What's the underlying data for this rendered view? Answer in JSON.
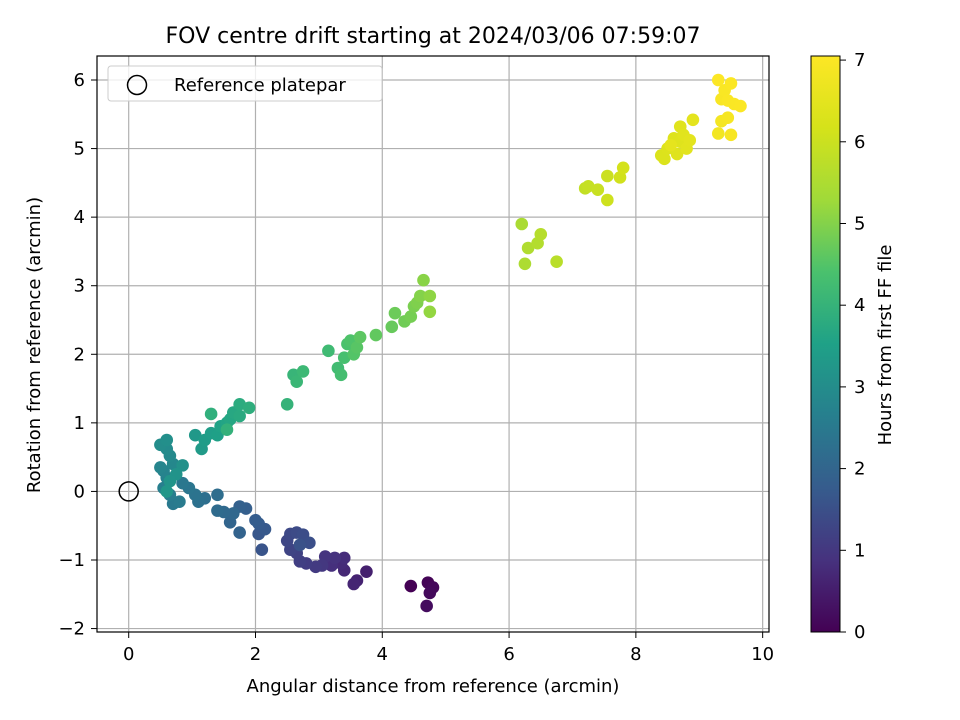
{
  "chart_data": {
    "type": "scatter",
    "title": "FOV centre drift starting at 2024/03/06 07:59:07",
    "xlabel": "Angular distance from reference (arcmin)",
    "ylabel": "Rotation from reference (arcmin)",
    "xlim": [
      -0.5,
      10.1
    ],
    "ylim": [
      -2.05,
      6.35
    ],
    "xticks": [
      0,
      2,
      4,
      6,
      8,
      10
    ],
    "yticks": [
      -2,
      -1,
      0,
      1,
      2,
      3,
      4,
      5,
      6
    ],
    "xtick_labels": [
      "0",
      "2",
      "4",
      "6",
      "8",
      "10"
    ],
    "ytick_labels": [
      "−2",
      "−1",
      "0",
      "1",
      "2",
      "3",
      "4",
      "5",
      "6"
    ],
    "grid": true,
    "legend": {
      "label": "Reference platepar",
      "placement": "top-left",
      "marker": "open-circle"
    },
    "reference_point": {
      "x": 0,
      "y": 0,
      "label": "Reference platepar"
    },
    "colorbar": {
      "label": "Hours from first FF file",
      "range": [
        0,
        7.05
      ],
      "ticks": [
        0,
        1,
        2,
        3,
        4,
        5,
        6,
        7
      ],
      "tick_labels": [
        "0",
        "1",
        "2",
        "3",
        "4",
        "5",
        "6",
        "7"
      ],
      "colormap": "viridis"
    },
    "points": [
      {
        "x": 4.45,
        "y": -1.38,
        "c": 0.0
      },
      {
        "x": 4.72,
        "y": -1.33,
        "c": 0.05
      },
      {
        "x": 4.8,
        "y": -1.4,
        "c": 0.1
      },
      {
        "x": 4.75,
        "y": -1.48,
        "c": 0.15
      },
      {
        "x": 4.7,
        "y": -1.67,
        "c": 0.2
      },
      {
        "x": 3.75,
        "y": -1.17,
        "c": 0.55
      },
      {
        "x": 3.6,
        "y": -1.3,
        "c": 0.6
      },
      {
        "x": 3.55,
        "y": -1.35,
        "c": 0.65
      },
      {
        "x": 3.4,
        "y": -1.15,
        "c": 0.7
      },
      {
        "x": 3.35,
        "y": -1.05,
        "c": 0.75
      },
      {
        "x": 3.4,
        "y": -0.97,
        "c": 0.8
      },
      {
        "x": 3.2,
        "y": -1.08,
        "c": 0.85
      },
      {
        "x": 3.25,
        "y": -0.97,
        "c": 0.9
      },
      {
        "x": 3.1,
        "y": -0.95,
        "c": 0.95
      },
      {
        "x": 3.05,
        "y": -1.08,
        "c": 1.0
      },
      {
        "x": 2.95,
        "y": -1.1,
        "c": 1.05
      },
      {
        "x": 2.8,
        "y": -1.05,
        "c": 1.1
      },
      {
        "x": 2.7,
        "y": -1.02,
        "c": 1.15
      },
      {
        "x": 2.65,
        "y": -0.9,
        "c": 1.2
      },
      {
        "x": 2.55,
        "y": -0.85,
        "c": 1.25
      },
      {
        "x": 2.5,
        "y": -0.72,
        "c": 1.3
      },
      {
        "x": 2.55,
        "y": -0.62,
        "c": 1.35
      },
      {
        "x": 2.65,
        "y": -0.6,
        "c": 1.4
      },
      {
        "x": 2.75,
        "y": -0.63,
        "c": 1.45
      },
      {
        "x": 2.85,
        "y": -0.75,
        "c": 1.5
      },
      {
        "x": 2.7,
        "y": -0.78,
        "c": 1.55
      },
      {
        "x": 2.1,
        "y": -0.85,
        "c": 1.6
      },
      {
        "x": 2.05,
        "y": -0.62,
        "c": 1.65
      },
      {
        "x": 2.15,
        "y": -0.55,
        "c": 1.7
      },
      {
        "x": 2.05,
        "y": -0.47,
        "c": 1.75
      },
      {
        "x": 2.0,
        "y": -0.42,
        "c": 1.8
      },
      {
        "x": 1.85,
        "y": -0.25,
        "c": 1.85
      },
      {
        "x": 1.75,
        "y": -0.22,
        "c": 1.9
      },
      {
        "x": 1.75,
        "y": -0.6,
        "c": 1.95
      },
      {
        "x": 1.6,
        "y": -0.45,
        "c": 2.0
      },
      {
        "x": 1.65,
        "y": -0.32,
        "c": 2.05
      },
      {
        "x": 1.5,
        "y": -0.3,
        "c": 2.1
      },
      {
        "x": 1.4,
        "y": -0.28,
        "c": 2.15
      },
      {
        "x": 1.4,
        "y": -0.05,
        "c": 2.2
      },
      {
        "x": 1.2,
        "y": -0.1,
        "c": 2.25
      },
      {
        "x": 1.1,
        "y": -0.15,
        "c": 2.3
      },
      {
        "x": 1.05,
        "y": -0.05,
        "c": 2.35
      },
      {
        "x": 0.95,
        "y": 0.05,
        "c": 2.4
      },
      {
        "x": 0.85,
        "y": 0.12,
        "c": 2.45
      },
      {
        "x": 0.7,
        "y": -0.18,
        "c": 2.5
      },
      {
        "x": 0.8,
        "y": -0.15,
        "c": 2.55
      },
      {
        "x": 0.65,
        "y": -0.05,
        "c": 2.6
      },
      {
        "x": 0.55,
        "y": 0.05,
        "c": 2.65
      },
      {
        "x": 0.6,
        "y": 0.2,
        "c": 2.7
      },
      {
        "x": 0.55,
        "y": 0.3,
        "c": 2.75
      },
      {
        "x": 0.5,
        "y": 0.35,
        "c": 2.8
      },
      {
        "x": 0.7,
        "y": 0.4,
        "c": 2.85
      },
      {
        "x": 0.65,
        "y": 0.52,
        "c": 2.9
      },
      {
        "x": 0.6,
        "y": 0.62,
        "c": 2.95
      },
      {
        "x": 0.5,
        "y": 0.68,
        "c": 3.0
      },
      {
        "x": 0.6,
        "y": 0.75,
        "c": 3.05
      },
      {
        "x": 0.85,
        "y": 0.38,
        "c": 3.1
      },
      {
        "x": 0.75,
        "y": 0.25,
        "c": 3.15
      },
      {
        "x": 0.65,
        "y": 0.15,
        "c": 3.2
      },
      {
        "x": 0.6,
        "y": 0.0,
        "c": 3.25
      },
      {
        "x": 1.05,
        "y": 0.82,
        "c": 3.3
      },
      {
        "x": 1.15,
        "y": 0.62,
        "c": 3.35
      },
      {
        "x": 1.2,
        "y": 0.75,
        "c": 3.4
      },
      {
        "x": 1.3,
        "y": 0.85,
        "c": 3.45
      },
      {
        "x": 1.4,
        "y": 0.82,
        "c": 3.5
      },
      {
        "x": 1.45,
        "y": 0.95,
        "c": 3.55
      },
      {
        "x": 1.55,
        "y": 1.0,
        "c": 3.6
      },
      {
        "x": 1.6,
        "y": 1.05,
        "c": 3.65
      },
      {
        "x": 1.65,
        "y": 1.15,
        "c": 3.7
      },
      {
        "x": 1.75,
        "y": 1.1,
        "c": 3.75
      },
      {
        "x": 1.75,
        "y": 1.27,
        "c": 3.8
      },
      {
        "x": 1.9,
        "y": 1.22,
        "c": 3.85
      },
      {
        "x": 1.3,
        "y": 1.13,
        "c": 3.9
      },
      {
        "x": 1.55,
        "y": 0.9,
        "c": 3.95
      },
      {
        "x": 2.5,
        "y": 1.27,
        "c": 4.0
      },
      {
        "x": 2.6,
        "y": 1.7,
        "c": 4.05
      },
      {
        "x": 2.65,
        "y": 1.6,
        "c": 4.1
      },
      {
        "x": 2.75,
        "y": 1.75,
        "c": 4.15
      },
      {
        "x": 3.15,
        "y": 2.05,
        "c": 4.2
      },
      {
        "x": 3.3,
        "y": 1.8,
        "c": 4.25
      },
      {
        "x": 3.35,
        "y": 1.7,
        "c": 4.3
      },
      {
        "x": 3.4,
        "y": 1.95,
        "c": 4.35
      },
      {
        "x": 3.45,
        "y": 2.15,
        "c": 4.4
      },
      {
        "x": 3.5,
        "y": 2.2,
        "c": 4.45
      },
      {
        "x": 3.55,
        "y": 2.0,
        "c": 4.5
      },
      {
        "x": 3.6,
        "y": 2.1,
        "c": 4.55
      },
      {
        "x": 3.65,
        "y": 2.25,
        "c": 4.6
      },
      {
        "x": 3.9,
        "y": 2.28,
        "c": 4.65
      },
      {
        "x": 4.15,
        "y": 2.4,
        "c": 4.7
      },
      {
        "x": 4.2,
        "y": 2.6,
        "c": 4.75
      },
      {
        "x": 4.35,
        "y": 2.48,
        "c": 4.8
      },
      {
        "x": 4.45,
        "y": 2.55,
        "c": 4.85
      },
      {
        "x": 4.5,
        "y": 2.7,
        "c": 4.9
      },
      {
        "x": 4.55,
        "y": 2.75,
        "c": 4.95
      },
      {
        "x": 4.6,
        "y": 2.85,
        "c": 5.0
      },
      {
        "x": 4.65,
        "y": 3.08,
        "c": 5.05
      },
      {
        "x": 4.75,
        "y": 2.85,
        "c": 5.1
      },
      {
        "x": 4.75,
        "y": 2.62,
        "c": 5.15
      },
      {
        "x": 6.2,
        "y": 3.9,
        "c": 5.45
      },
      {
        "x": 6.25,
        "y": 3.32,
        "c": 5.5
      },
      {
        "x": 6.3,
        "y": 3.55,
        "c": 5.55
      },
      {
        "x": 6.45,
        "y": 3.62,
        "c": 5.6
      },
      {
        "x": 6.5,
        "y": 3.75,
        "c": 5.65
      },
      {
        "x": 6.75,
        "y": 3.35,
        "c": 5.7
      },
      {
        "x": 7.2,
        "y": 4.42,
        "c": 5.85
      },
      {
        "x": 7.25,
        "y": 4.45,
        "c": 5.9
      },
      {
        "x": 7.4,
        "y": 4.4,
        "c": 5.95
      },
      {
        "x": 7.55,
        "y": 4.6,
        "c": 6.0
      },
      {
        "x": 7.55,
        "y": 4.25,
        "c": 6.05
      },
      {
        "x": 7.75,
        "y": 4.58,
        "c": 6.1
      },
      {
        "x": 7.8,
        "y": 4.72,
        "c": 6.15
      },
      {
        "x": 8.4,
        "y": 4.9,
        "c": 6.3
      },
      {
        "x": 8.45,
        "y": 4.85,
        "c": 6.32
      },
      {
        "x": 8.5,
        "y": 5.0,
        "c": 6.34
      },
      {
        "x": 8.6,
        "y": 5.15,
        "c": 6.36
      },
      {
        "x": 8.65,
        "y": 4.92,
        "c": 6.38
      },
      {
        "x": 8.7,
        "y": 5.1,
        "c": 6.4
      },
      {
        "x": 8.7,
        "y": 5.32,
        "c": 6.42
      },
      {
        "x": 8.75,
        "y": 5.2,
        "c": 6.44
      },
      {
        "x": 8.8,
        "y": 5.0,
        "c": 6.46
      },
      {
        "x": 8.85,
        "y": 5.12,
        "c": 6.48
      },
      {
        "x": 8.9,
        "y": 5.42,
        "c": 6.5
      },
      {
        "x": 8.55,
        "y": 5.05,
        "c": 6.52
      },
      {
        "x": 9.3,
        "y": 5.22,
        "c": 6.8
      },
      {
        "x": 9.35,
        "y": 5.4,
        "c": 6.85
      },
      {
        "x": 9.45,
        "y": 5.45,
        "c": 6.9
      },
      {
        "x": 9.5,
        "y": 5.2,
        "c": 6.92
      },
      {
        "x": 9.35,
        "y": 5.72,
        "c": 6.95
      },
      {
        "x": 9.4,
        "y": 5.85,
        "c": 6.97
      },
      {
        "x": 9.45,
        "y": 5.7,
        "c": 6.98
      },
      {
        "x": 9.55,
        "y": 5.65,
        "c": 6.99
      },
      {
        "x": 9.65,
        "y": 5.62,
        "c": 7.0
      },
      {
        "x": 9.5,
        "y": 5.95,
        "c": 7.0
      },
      {
        "x": 9.3,
        "y": 6.0,
        "c": 7.02
      }
    ]
  }
}
